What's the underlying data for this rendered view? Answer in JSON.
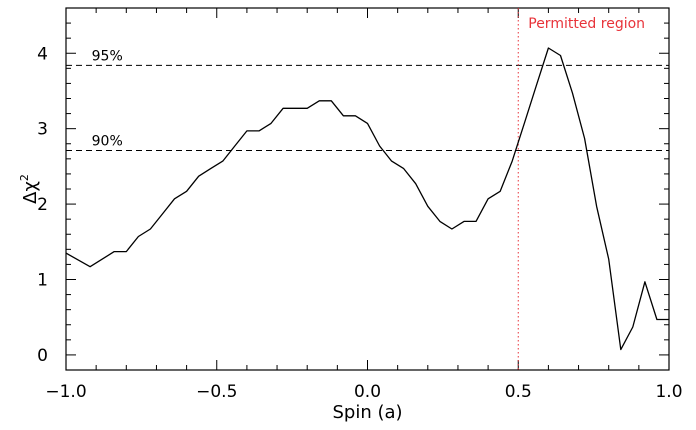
{
  "chart_data": {
    "type": "line",
    "xlabel": "Spin (a)",
    "ylabel": "Δχ",
    "ylabel_superscript": "2",
    "xlim": [
      -1.0,
      1.0
    ],
    "ylim": [
      -0.2,
      4.6
    ],
    "x_ticks": [
      -1.0,
      -0.5,
      0.0,
      0.5,
      1.0
    ],
    "x_tick_labels": [
      "−1.0",
      "−0.5",
      "0.0",
      "0.5",
      "1.0"
    ],
    "y_ticks": [
      0,
      1,
      2,
      3,
      4
    ],
    "y_tick_labels": [
      "0",
      "1",
      "2",
      "3",
      "4"
    ],
    "grid": false,
    "series": [
      {
        "color": "#000000",
        "x": [
          -1.0,
          -0.92,
          -0.84,
          -0.8,
          -0.76,
          -0.72,
          -0.68,
          -0.64,
          -0.6,
          -0.56,
          -0.52,
          -0.48,
          -0.44,
          -0.4,
          -0.36,
          -0.32,
          -0.28,
          -0.24,
          -0.2,
          -0.16,
          -0.12,
          -0.08,
          -0.04,
          0.0,
          0.04,
          0.08,
          0.12,
          0.16,
          0.2,
          0.24,
          0.28,
          0.32,
          0.36,
          0.4,
          0.44,
          0.48,
          0.52,
          0.56,
          0.6,
          0.64,
          0.68,
          0.72,
          0.76,
          0.8,
          0.84,
          0.88,
          0.92,
          0.96,
          1.0
        ],
        "y": [
          1.35,
          1.17,
          1.37,
          1.37,
          1.57,
          1.67,
          1.87,
          2.07,
          2.17,
          2.37,
          2.47,
          2.57,
          2.77,
          2.97,
          2.97,
          3.07,
          3.27,
          3.27,
          3.27,
          3.37,
          3.37,
          3.17,
          3.17,
          3.07,
          2.77,
          2.57,
          2.47,
          2.27,
          1.97,
          1.77,
          1.67,
          1.77,
          1.77,
          2.07,
          2.17,
          2.57,
          3.07,
          3.57,
          4.07,
          3.97,
          3.47,
          2.87,
          1.97,
          1.27,
          0.07,
          0.37,
          0.97,
          0.47,
          0.47
        ]
      }
    ],
    "annotations": [
      {
        "label": "95%",
        "y": 3.84,
        "style": "dashed"
      },
      {
        "label": "90%",
        "y": 2.71,
        "style": "dashed"
      }
    ],
    "vertical_line": {
      "x": 0.5,
      "label": "Permitted region",
      "color": "#e8333a",
      "style": "dotted"
    }
  }
}
